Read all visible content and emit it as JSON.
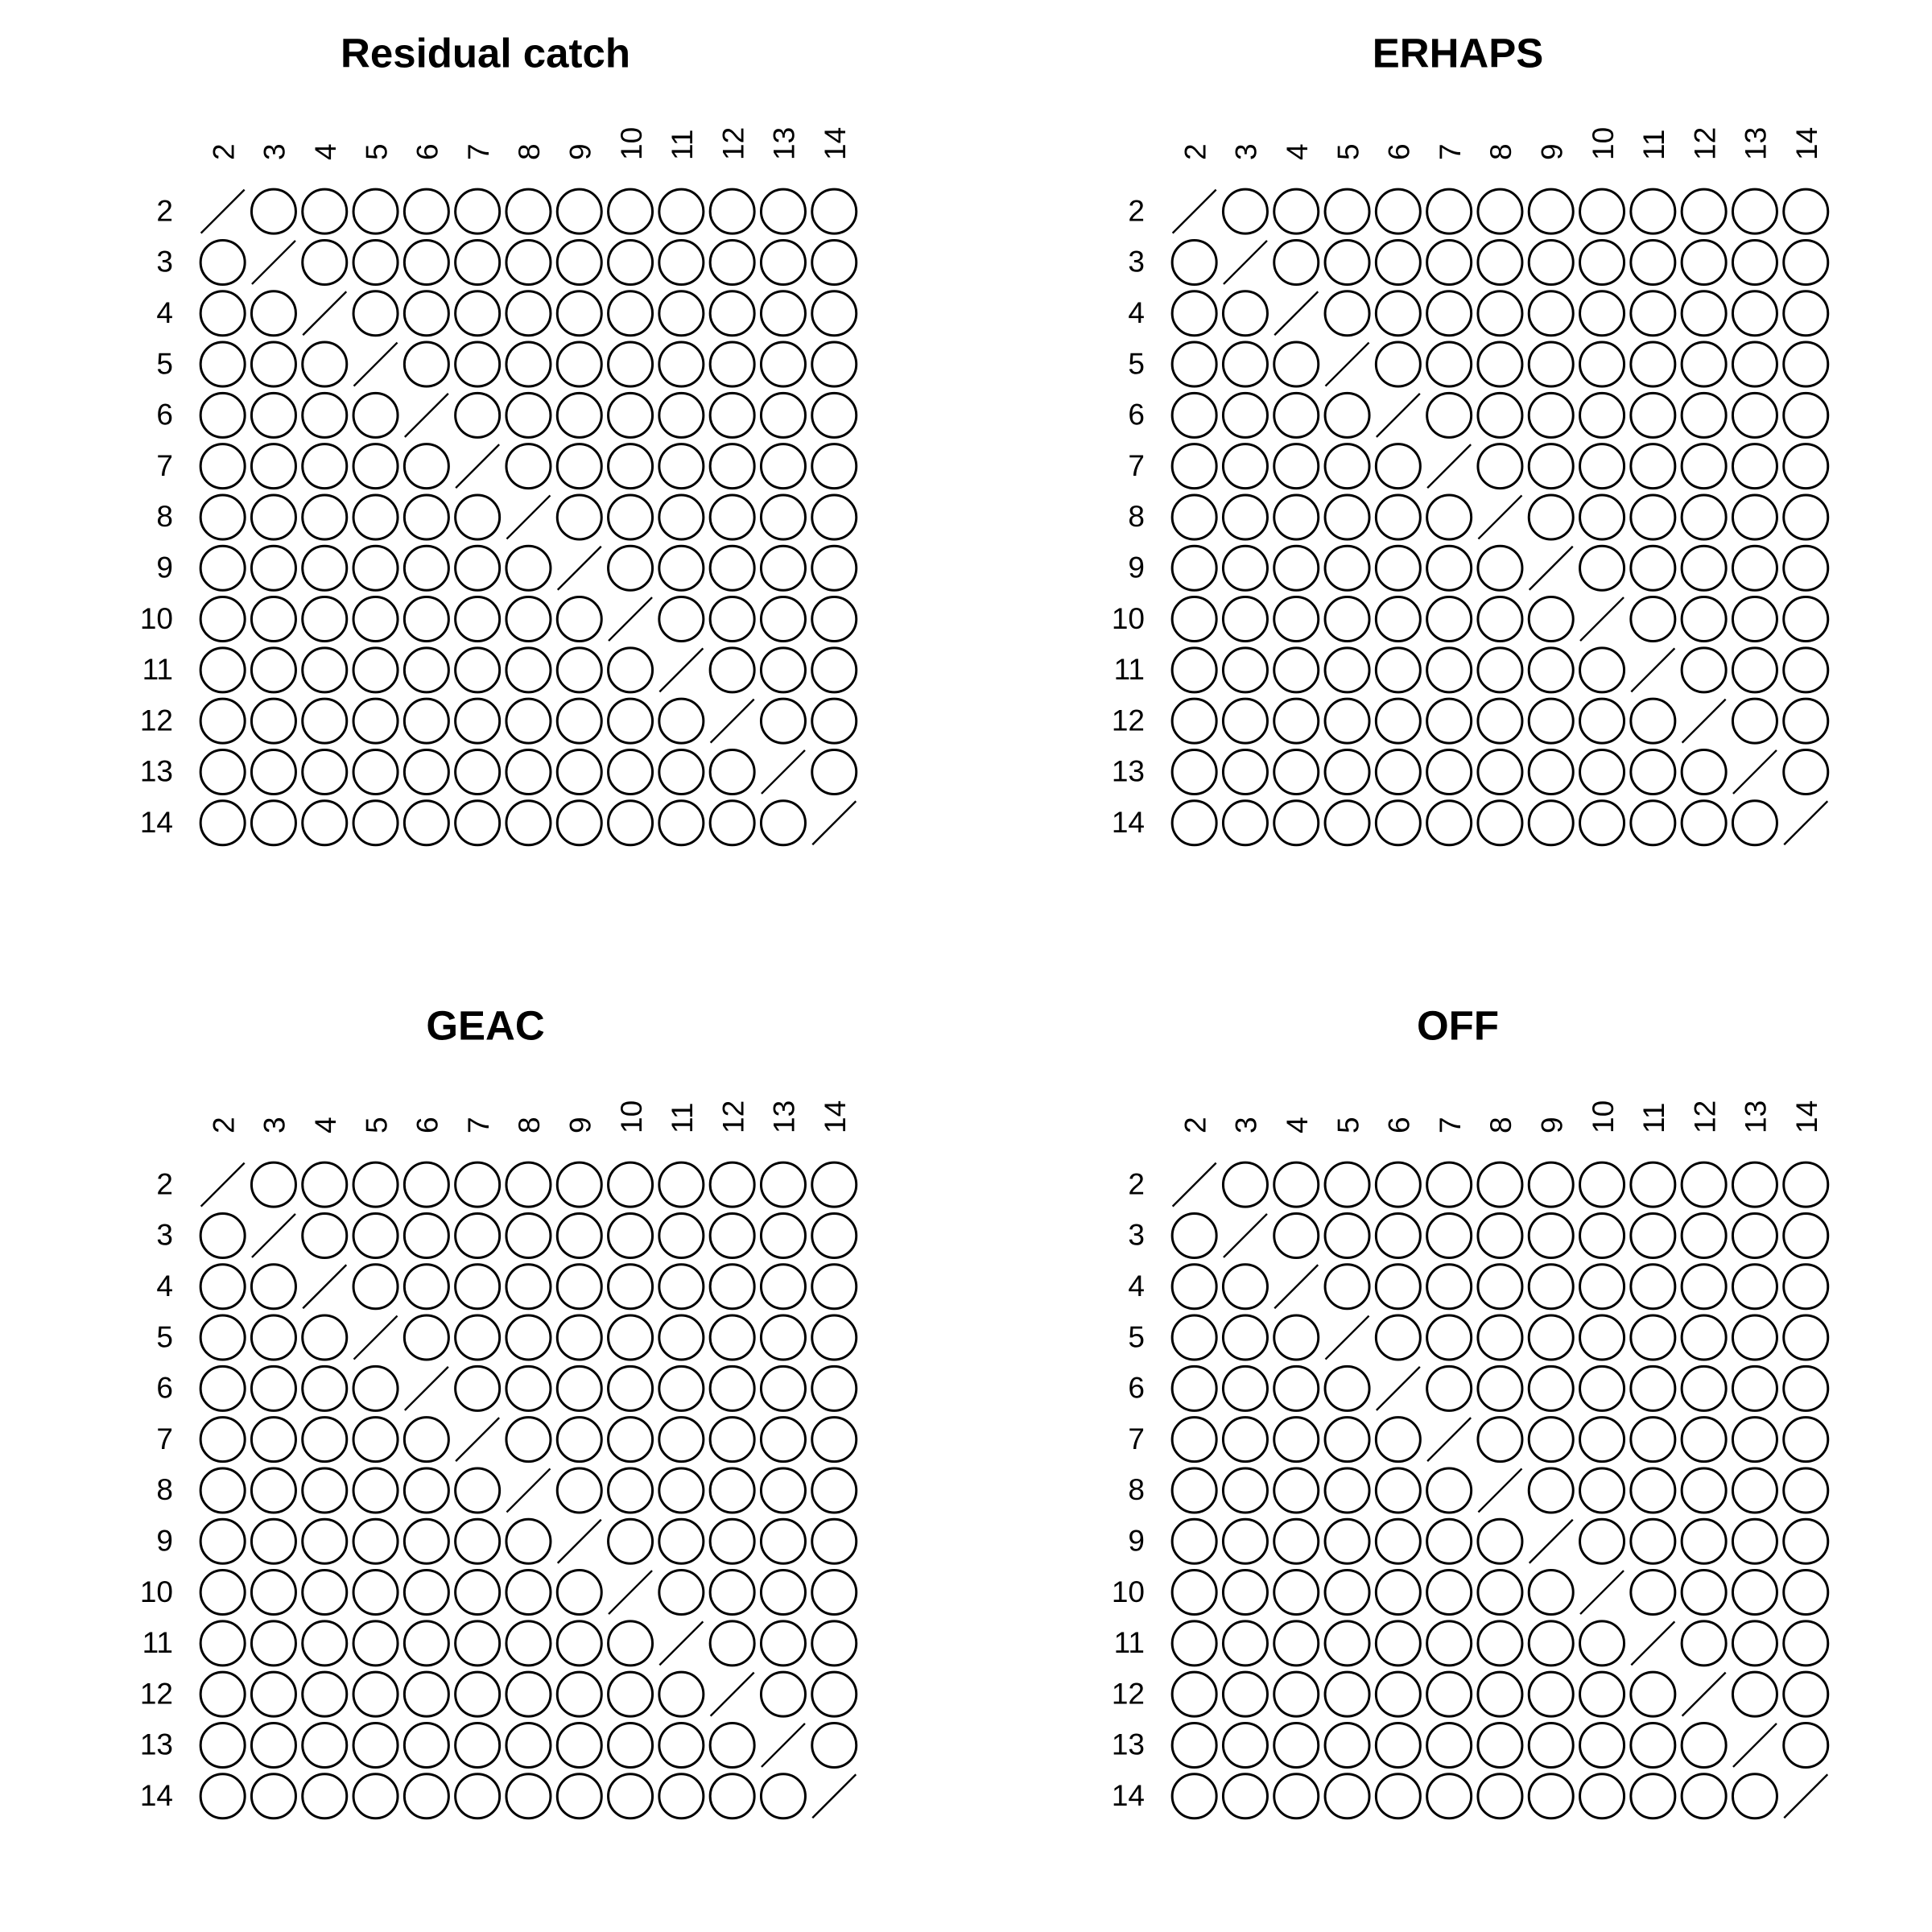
{
  "chart_data": [
    {
      "type": "correlation-matrix",
      "title": "Residual catch",
      "variables": [
        "2",
        "3",
        "4",
        "5",
        "6",
        "7",
        "8",
        "9",
        "10",
        "11",
        "12",
        "13",
        "14"
      ],
      "cell_glyph": "circle",
      "diagonal_glyph": "slash",
      "grid": false,
      "legend": "none",
      "position": "top-left"
    },
    {
      "type": "correlation-matrix",
      "title": "ERHAPS",
      "variables": [
        "2",
        "3",
        "4",
        "5",
        "6",
        "7",
        "8",
        "9",
        "10",
        "11",
        "12",
        "13",
        "14"
      ],
      "cell_glyph": "circle",
      "diagonal_glyph": "slash",
      "grid": false,
      "legend": "none",
      "position": "top-right"
    },
    {
      "type": "correlation-matrix",
      "title": "GEAC",
      "variables": [
        "2",
        "3",
        "4",
        "5",
        "6",
        "7",
        "8",
        "9",
        "10",
        "11",
        "12",
        "13",
        "14"
      ],
      "cell_glyph": "circle",
      "diagonal_glyph": "slash",
      "grid": false,
      "legend": "none",
      "position": "bottom-left"
    },
    {
      "type": "correlation-matrix",
      "title": "OFF",
      "variables": [
        "2",
        "3",
        "4",
        "5",
        "6",
        "7",
        "8",
        "9",
        "10",
        "11",
        "12",
        "13",
        "14"
      ],
      "cell_glyph": "circle",
      "diagonal_glyph": "slash",
      "grid": false,
      "legend": "none",
      "position": "bottom-right"
    }
  ]
}
